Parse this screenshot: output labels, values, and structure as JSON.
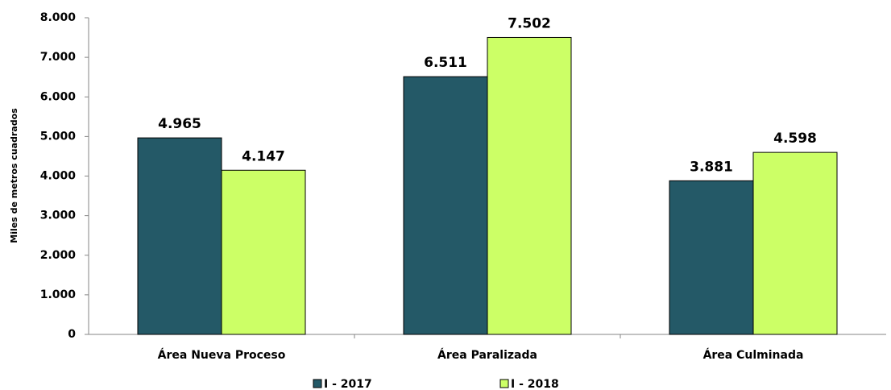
{
  "chart_data": {
    "type": "bar",
    "ylabel": "Miles de metros cuadrados",
    "categories": [
      "Área Nueva Proceso",
      "Área Paralizada",
      "Área Culminada"
    ],
    "series": [
      {
        "name": "I - 2017",
        "color": "#245967",
        "values": [
          4965,
          6511,
          3881
        ],
        "value_labels": [
          "4.965",
          "6.511",
          "3.881"
        ]
      },
      {
        "name": "I - 2018",
        "color": "#ccff66",
        "values": [
          4147,
          7502,
          4598
        ],
        "value_labels": [
          "4.147",
          "7.502",
          "4.598"
        ]
      }
    ],
    "ylim": [
      0,
      8000
    ],
    "yticks": [
      0,
      {
        "value": 1000,
        "label": "1.000"
      },
      {
        "value": 2000,
        "label": "2.000"
      },
      {
        "value": 3000,
        "label": "3.000"
      },
      {
        "value": 4000,
        "label": "4.000"
      },
      {
        "value": 5000,
        "label": "5.000"
      },
      {
        "value": 6000,
        "label": "6.000"
      },
      {
        "value": 7000,
        "label": "7.000"
      },
      {
        "value": 8000,
        "label": "8.000"
      }
    ],
    "grid": false,
    "legend": "bottom"
  }
}
